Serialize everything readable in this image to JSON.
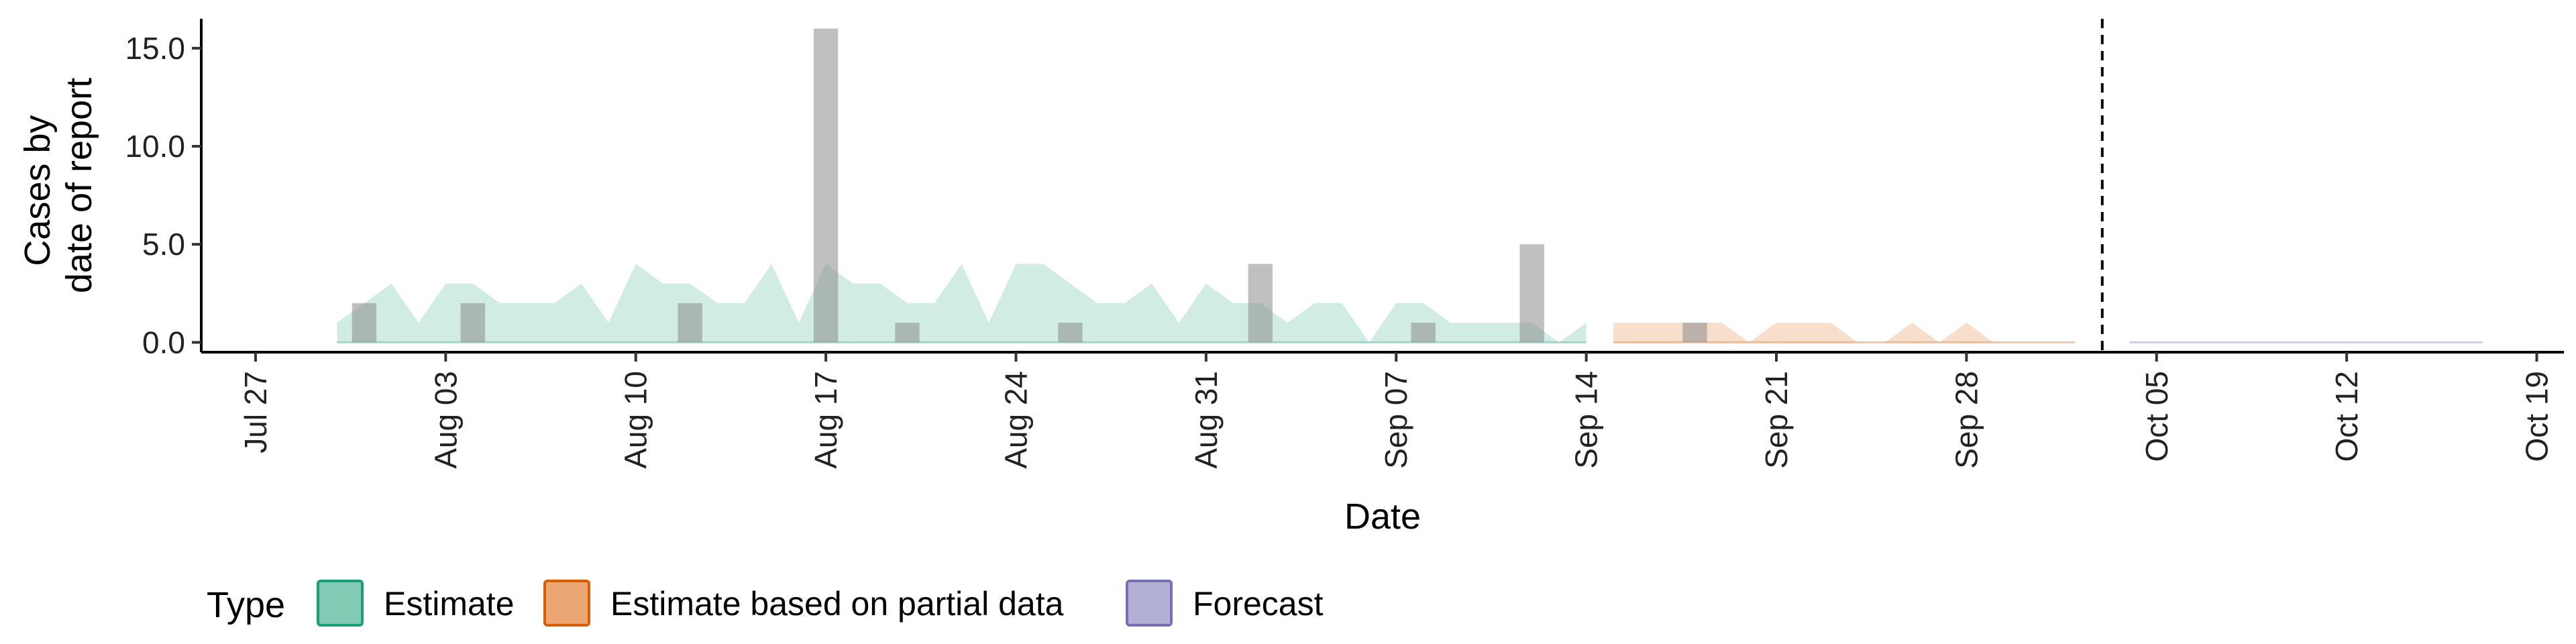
{
  "chart_data": {
    "type": "area",
    "xlabel": "Date",
    "ylabel_lines": [
      "Cases by",
      "date of report"
    ],
    "ylim": [
      -0.5,
      16.5
    ],
    "xlim": [
      "2020-07-25",
      "2020-10-20"
    ],
    "y_ticks": [
      0,
      5,
      10,
      15
    ],
    "y_tick_labels": [
      "0.0",
      "5.0",
      "10.0",
      "15.0"
    ],
    "x_ticks": [
      "2020-07-27",
      "2020-08-03",
      "2020-08-10",
      "2020-08-17",
      "2020-08-24",
      "2020-08-31",
      "2020-09-07",
      "2020-09-14",
      "2020-09-21",
      "2020-09-28",
      "2020-10-05",
      "2020-10-12",
      "2020-10-19"
    ],
    "x_tick_labels": [
      "Jul 27",
      "Aug 03",
      "Aug 10",
      "Aug 17",
      "Aug 24",
      "Aug 31",
      "Sep 07",
      "Sep 14",
      "Sep 21",
      "Sep 28",
      "Oct 05",
      "Oct 12",
      "Oct 19"
    ],
    "grid": false,
    "vline_date": "2020-10-03",
    "reported_cases": [
      {
        "date": "2020-07-31",
        "value": 2
      },
      {
        "date": "2020-08-04",
        "value": 2
      },
      {
        "date": "2020-08-12",
        "value": 2
      },
      {
        "date": "2020-08-17",
        "value": 16
      },
      {
        "date": "2020-08-20",
        "value": 1
      },
      {
        "date": "2020-08-26",
        "value": 1
      },
      {
        "date": "2020-09-02",
        "value": 4
      },
      {
        "date": "2020-09-08",
        "value": 1
      },
      {
        "date": "2020-09-12",
        "value": 5
      },
      {
        "date": "2020-09-18",
        "value": 1
      }
    ],
    "series": [
      {
        "name": "Estimate",
        "color": "#1b9e77",
        "x": [
          "2020-07-30",
          "2020-07-31",
          "2020-08-01",
          "2020-08-02",
          "2020-08-03",
          "2020-08-04",
          "2020-08-05",
          "2020-08-06",
          "2020-08-07",
          "2020-08-08",
          "2020-08-09",
          "2020-08-10",
          "2020-08-11",
          "2020-08-12",
          "2020-08-13",
          "2020-08-14",
          "2020-08-15",
          "2020-08-16",
          "2020-08-17",
          "2020-08-18",
          "2020-08-19",
          "2020-08-20",
          "2020-08-21",
          "2020-08-22",
          "2020-08-23",
          "2020-08-24",
          "2020-08-25",
          "2020-08-26",
          "2020-08-27",
          "2020-08-28",
          "2020-08-29",
          "2020-08-30",
          "2020-08-31",
          "2020-09-01",
          "2020-09-02",
          "2020-09-03",
          "2020-09-04",
          "2020-09-05",
          "2020-09-06",
          "2020-09-07",
          "2020-09-08",
          "2020-09-09",
          "2020-09-10",
          "2020-09-11",
          "2020-09-12",
          "2020-09-13",
          "2020-09-14"
        ],
        "values": [
          1,
          2,
          3,
          1,
          3,
          3,
          2,
          2,
          2,
          3,
          1,
          4,
          3,
          3,
          2,
          2,
          4,
          1,
          4,
          3,
          3,
          2,
          2,
          4,
          1,
          4,
          4,
          3,
          2,
          2,
          3,
          1,
          3,
          2,
          2,
          1,
          2,
          2,
          0,
          2,
          2,
          1,
          1,
          1,
          1,
          0,
          1
        ]
      },
      {
        "name": "Estimate based on partial data",
        "color": "#d95f02",
        "x": [
          "2020-09-15",
          "2020-09-16",
          "2020-09-17",
          "2020-09-18",
          "2020-09-19",
          "2020-09-20",
          "2020-09-21",
          "2020-09-22",
          "2020-09-23",
          "2020-09-24",
          "2020-09-25",
          "2020-09-26",
          "2020-09-27",
          "2020-09-28",
          "2020-09-29",
          "2020-09-30",
          "2020-10-01",
          "2020-10-02"
        ],
        "values": [
          1,
          1,
          1,
          1,
          1,
          0,
          1,
          1,
          1,
          0,
          0,
          1,
          0,
          1,
          0,
          0,
          0,
          0
        ]
      },
      {
        "name": "Forecast",
        "color": "#7570b3",
        "x": [
          "2020-10-04",
          "2020-10-05",
          "2020-10-06",
          "2020-10-07",
          "2020-10-08",
          "2020-10-09",
          "2020-10-10",
          "2020-10-11",
          "2020-10-12",
          "2020-10-13",
          "2020-10-14",
          "2020-10-15",
          "2020-10-16",
          "2020-10-17"
        ],
        "values": [
          0,
          0,
          0,
          0,
          0,
          0,
          0,
          0,
          0,
          0,
          0,
          0,
          0,
          0
        ]
      }
    ],
    "legend": {
      "title": "Type",
      "position": "bottom-left",
      "items": [
        "Estimate",
        "Estimate based on partial data",
        "Forecast"
      ]
    }
  }
}
